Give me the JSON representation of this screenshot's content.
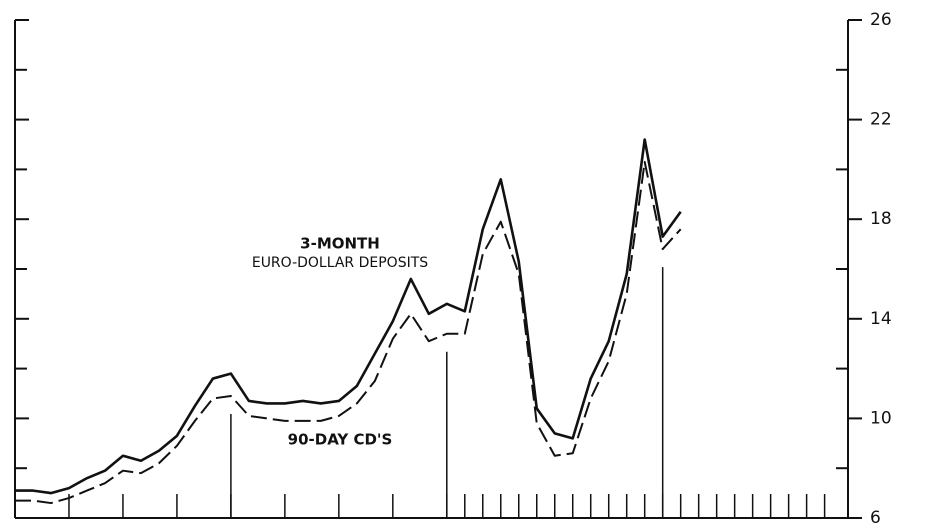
{
  "chart_data": {
    "type": "line",
    "annotations": [
      "3-MONTH",
      "EURO-DOLLAR DEPOSITS",
      "90-DAY CD'S"
    ],
    "x": [
      0,
      1,
      2,
      3,
      4,
      5,
      6,
      7,
      8,
      9,
      10,
      11,
      12,
      13,
      14,
      15,
      16,
      17,
      18,
      19,
      20,
      21,
      22,
      23,
      24,
      25,
      26,
      27,
      28,
      29,
      30,
      31,
      32,
      33,
      34,
      35,
      36,
      37
    ],
    "series": [
      {
        "name": "3-MONTH EURO-DOLLAR DEPOSITS",
        "color": "#111111",
        "dash": "solid",
        "values": [
          7.1,
          7.1,
          7.0,
          7.2,
          7.6,
          7.9,
          8.5,
          8.3,
          8.7,
          9.3,
          10.5,
          11.6,
          11.8,
          10.7,
          10.6,
          10.6,
          10.7,
          10.6,
          10.7,
          11.3,
          12.6,
          13.9,
          15.6,
          14.2,
          14.6,
          14.3,
          17.6,
          19.6,
          16.3,
          10.4,
          9.4,
          9.2,
          11.6,
          13.1,
          15.8,
          21.2,
          17.3,
          18.3
        ]
      },
      {
        "name": "90-DAY CD'S",
        "color": "#111111",
        "dash": "dashed",
        "values": [
          6.7,
          6.7,
          6.6,
          6.8,
          7.1,
          7.4,
          7.9,
          7.8,
          8.2,
          8.9,
          9.9,
          10.8,
          10.9,
          10.1,
          10.0,
          9.9,
          9.9,
          9.9,
          10.1,
          10.6,
          11.5,
          13.2,
          14.2,
          13.1,
          13.4,
          13.4,
          16.6,
          17.9,
          15.8,
          9.8,
          8.5,
          8.6,
          10.8,
          12.3,
          15.0,
          20.3,
          16.8,
          17.6
        ]
      }
    ],
    "xlim": [
      0,
      46.3
    ],
    "xticks": [
      3,
      6,
      9,
      12,
      15,
      18,
      21,
      24,
      25,
      26,
      27,
      28,
      29,
      30,
      31,
      32,
      33,
      34,
      35,
      36,
      37,
      38,
      39,
      40,
      41,
      42,
      43,
      44,
      45
    ],
    "major_xticks": [
      12,
      24,
      36
    ],
    "ylim": [
      6,
      26
    ],
    "yticks": [
      6,
      10,
      14,
      18,
      22,
      26
    ],
    "minor_yticks": [
      8,
      12,
      16,
      20,
      24
    ],
    "yaxis_side": "right"
  }
}
